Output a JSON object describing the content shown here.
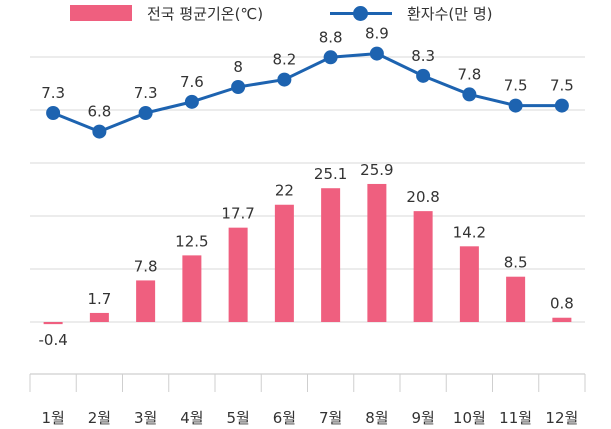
{
  "chart_data": {
    "type": "bar+line",
    "categories": [
      "1월",
      "2월",
      "3월",
      "4월",
      "5월",
      "6월",
      "7월",
      "8월",
      "9월",
      "10월",
      "11월",
      "12월"
    ],
    "series": [
      {
        "name": "전국 평균기온(℃)",
        "type": "bar",
        "values": [
          -0.4,
          1.7,
          7.8,
          12.5,
          17.7,
          22,
          25.1,
          25.9,
          20.8,
          14.2,
          8.5,
          0.8
        ],
        "labels": [
          "-0.4",
          "1.7",
          "7.8",
          "12.5",
          "17.7",
          "22",
          "25.1",
          "25.9",
          "20.8",
          "14.2",
          "8.5",
          "0.8"
        ],
        "color": "#ef5f7f"
      },
      {
        "name": "환자수(만 명)",
        "type": "line",
        "values": [
          7.3,
          6.8,
          7.3,
          7.6,
          8,
          8.2,
          8.8,
          8.9,
          8.3,
          7.8,
          7.5,
          7.5
        ],
        "labels": [
          "7.3",
          "6.8",
          "7.3",
          "7.6",
          "8",
          "8.2",
          "8.8",
          "8.9",
          "8.3",
          "7.8",
          "7.5",
          "7.5"
        ],
        "color": "#1d63b0"
      }
    ],
    "bar_axis_range": [
      -10,
      35
    ],
    "line_axis_range": [
      5.2,
      9.4
    ],
    "grid": true,
    "legend_position": "top"
  },
  "colors": {
    "grid": "#d8d8d8",
    "axis": "#cfcfcf",
    "label": "#333333"
  }
}
